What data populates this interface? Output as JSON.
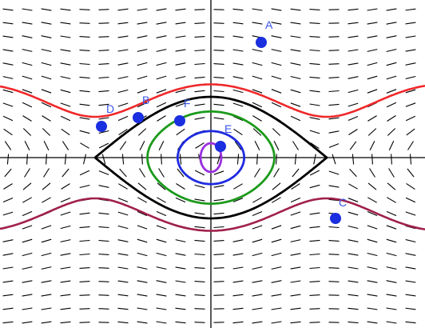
{
  "diagram": {
    "points": [
      {
        "label": "A",
        "color": "#1a2fe0",
        "label_color": "#3a55e8"
      },
      {
        "label": "B",
        "color": "#1a2fe0",
        "label_color": "#3a55e8"
      },
      {
        "label": "C",
        "color": "#1a2fe0",
        "label_color": "#3a55e8"
      },
      {
        "label": "D",
        "color": "#1a2fe0",
        "label_color": "#3a55e8"
      },
      {
        "label": "E",
        "color": "#1a2fe0",
        "label_color": "#3a55e8"
      },
      {
        "label": "F",
        "color": "#1a2fe0",
        "label_color": "#3a55e8"
      }
    ],
    "curves": [
      {
        "name": "upper-wave",
        "color": "#f0282a"
      },
      {
        "name": "lower-wave",
        "color": "#a0204a"
      },
      {
        "name": "separatrix-loop",
        "color": "#000000"
      },
      {
        "name": "green-orbit",
        "color": "#1c9a1c"
      },
      {
        "name": "blue-orbit",
        "color": "#1f2be0"
      },
      {
        "name": "purple-orbit",
        "color": "#9b30e0"
      }
    ],
    "field_color": "#000000",
    "axis_color": "#000000"
  }
}
